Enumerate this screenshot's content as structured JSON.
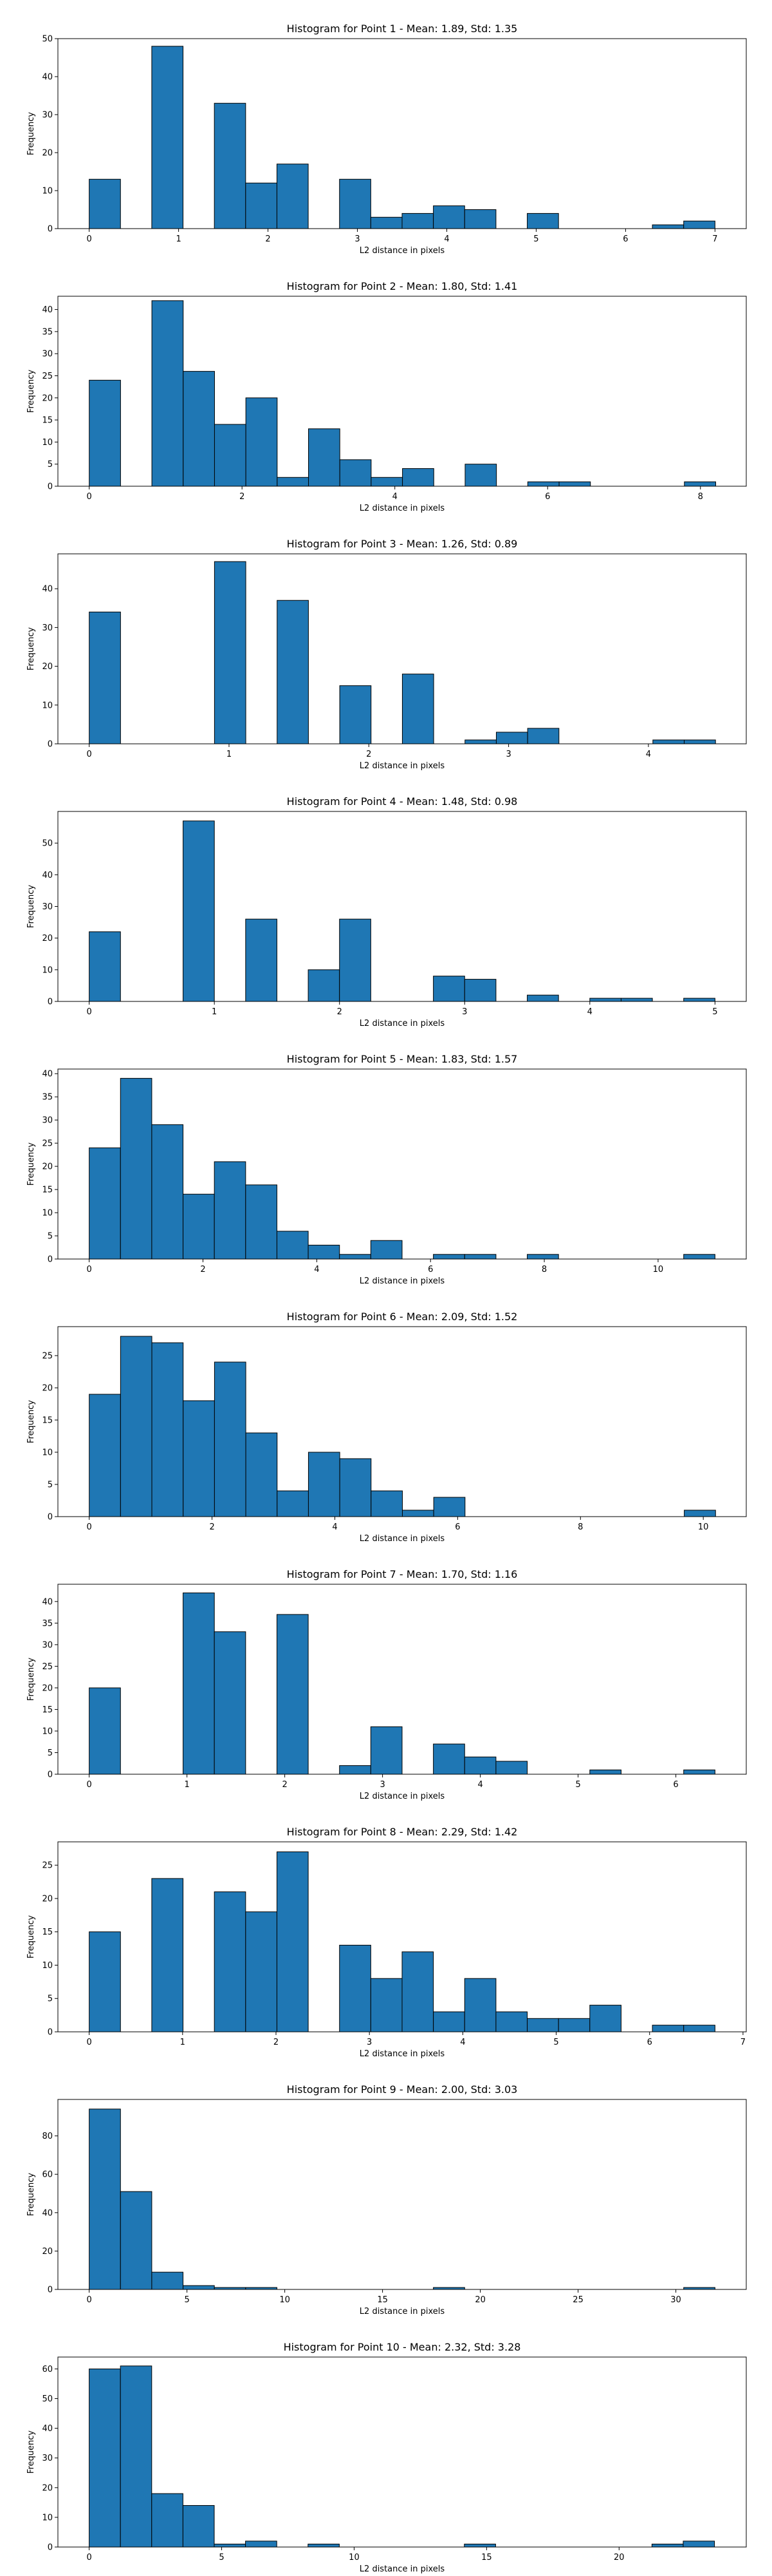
{
  "chart_data": [
    {
      "type": "bar",
      "title": "Histogram for Point 1 - Mean: 1.89, Std: 1.35",
      "xlabel": "L2 distance in pixels",
      "ylabel": "Frequency",
      "bin_width": 0.35,
      "xlim": [
        -0.35,
        7.35
      ],
      "ylim": [
        0,
        50
      ],
      "xticks": [
        0,
        1,
        2,
        3,
        4,
        5,
        6,
        7
      ],
      "yticks": [
        0,
        10,
        20,
        30,
        40,
        50
      ],
      "bins": [
        {
          "x": 0.0,
          "value": 13
        },
        {
          "x": 0.7,
          "value": 48
        },
        {
          "x": 1.4,
          "value": 33
        },
        {
          "x": 1.75,
          "value": 12
        },
        {
          "x": 2.1,
          "value": 17
        },
        {
          "x": 2.8,
          "value": 13
        },
        {
          "x": 3.15,
          "value": 3
        },
        {
          "x": 3.5,
          "value": 4
        },
        {
          "x": 3.85,
          "value": 6
        },
        {
          "x": 4.2,
          "value": 5
        },
        {
          "x": 4.9,
          "value": 4
        },
        {
          "x": 6.3,
          "value": 1
        },
        {
          "x": 6.65,
          "value": 2
        }
      ]
    },
    {
      "type": "bar",
      "title": "Histogram for Point 2 - Mean: 1.80, Std: 1.41",
      "xlabel": "L2 distance in pixels",
      "ylabel": "Frequency",
      "bin_width": 0.41,
      "xlim": [
        -0.41,
        8.6
      ],
      "ylim": [
        0,
        43
      ],
      "xticks": [
        0,
        2,
        4,
        6,
        8
      ],
      "yticks": [
        0,
        5,
        10,
        15,
        20,
        25,
        30,
        35,
        40
      ],
      "bins": [
        {
          "x": 0.0,
          "value": 24
        },
        {
          "x": 0.82,
          "value": 42
        },
        {
          "x": 1.23,
          "value": 26
        },
        {
          "x": 1.64,
          "value": 14
        },
        {
          "x": 2.05,
          "value": 20
        },
        {
          "x": 2.46,
          "value": 2
        },
        {
          "x": 2.87,
          "value": 13
        },
        {
          "x": 3.28,
          "value": 6
        },
        {
          "x": 3.69,
          "value": 2
        },
        {
          "x": 4.1,
          "value": 4
        },
        {
          "x": 4.92,
          "value": 5
        },
        {
          "x": 5.74,
          "value": 1
        },
        {
          "x": 6.15,
          "value": 1
        },
        {
          "x": 7.79,
          "value": 1
        }
      ]
    },
    {
      "type": "bar",
      "title": "Histogram for Point 3 - Mean: 1.26, Std: 0.89",
      "xlabel": "L2 distance in pixels",
      "ylabel": "Frequency",
      "bin_width": 0.224,
      "xlim": [
        -0.224,
        4.7
      ],
      "ylim": [
        0,
        49
      ],
      "xticks": [
        0,
        1,
        2,
        3,
        4
      ],
      "yticks": [
        0,
        10,
        20,
        30,
        40
      ],
      "bins": [
        {
          "x": 0.0,
          "value": 34
        },
        {
          "x": 0.896,
          "value": 47
        },
        {
          "x": 1.344,
          "value": 37
        },
        {
          "x": 1.792,
          "value": 15
        },
        {
          "x": 2.24,
          "value": 18
        },
        {
          "x": 2.688,
          "value": 1
        },
        {
          "x": 2.912,
          "value": 3
        },
        {
          "x": 3.136,
          "value": 4
        },
        {
          "x": 4.032,
          "value": 1
        },
        {
          "x": 4.256,
          "value": 1
        }
      ]
    },
    {
      "type": "bar",
      "title": "Histogram for Point 4 - Mean: 1.48, Std: 0.98",
      "xlabel": "L2 distance in pixels",
      "ylabel": "Frequency",
      "bin_width": 0.25,
      "xlim": [
        -0.25,
        5.25
      ],
      "ylim": [
        0,
        60
      ],
      "xticks": [
        0,
        1,
        2,
        3,
        4,
        5
      ],
      "yticks": [
        0,
        10,
        20,
        30,
        40,
        50
      ],
      "bins": [
        {
          "x": 0.0,
          "value": 22
        },
        {
          "x": 0.75,
          "value": 57
        },
        {
          "x": 1.25,
          "value": 26
        },
        {
          "x": 1.75,
          "value": 10
        },
        {
          "x": 2.0,
          "value": 26
        },
        {
          "x": 2.75,
          "value": 8
        },
        {
          "x": 3.0,
          "value": 7
        },
        {
          "x": 3.5,
          "value": 2
        },
        {
          "x": 4.0,
          "value": 1
        },
        {
          "x": 4.25,
          "value": 1
        },
        {
          "x": 4.75,
          "value": 1
        }
      ]
    },
    {
      "type": "bar",
      "title": "Histogram for Point 5 - Mean: 1.83, Std: 1.57",
      "xlabel": "L2 distance in pixels",
      "ylabel": "Frequency",
      "bin_width": 0.55,
      "xlim": [
        -0.55,
        11.55
      ],
      "ylim": [
        0,
        41
      ],
      "xticks": [
        0,
        2,
        4,
        6,
        8,
        10
      ],
      "yticks": [
        0,
        5,
        10,
        15,
        20,
        25,
        30,
        35,
        40
      ],
      "bins": [
        {
          "x": 0.0,
          "value": 24
        },
        {
          "x": 0.55,
          "value": 39
        },
        {
          "x": 1.1,
          "value": 29
        },
        {
          "x": 1.65,
          "value": 14
        },
        {
          "x": 2.2,
          "value": 21
        },
        {
          "x": 2.75,
          "value": 16
        },
        {
          "x": 3.3,
          "value": 6
        },
        {
          "x": 3.85,
          "value": 3
        },
        {
          "x": 4.4,
          "value": 1
        },
        {
          "x": 4.95,
          "value": 4
        },
        {
          "x": 6.05,
          "value": 1
        },
        {
          "x": 6.6,
          "value": 1
        },
        {
          "x": 7.7,
          "value": 1
        },
        {
          "x": 10.45,
          "value": 1
        }
      ]
    },
    {
      "type": "bar",
      "title": "Histogram for Point 6 - Mean: 2.09, Std: 1.52",
      "xlabel": "L2 distance in pixels",
      "ylabel": "Frequency",
      "bin_width": 0.51,
      "xlim": [
        -0.51,
        10.7
      ],
      "ylim": [
        0,
        29.5
      ],
      "xticks": [
        0,
        2,
        4,
        6,
        8,
        10
      ],
      "yticks": [
        0,
        5,
        10,
        15,
        20,
        25
      ],
      "bins": [
        {
          "x": 0.0,
          "value": 19
        },
        {
          "x": 0.51,
          "value": 28
        },
        {
          "x": 1.02,
          "value": 27
        },
        {
          "x": 1.53,
          "value": 18
        },
        {
          "x": 2.04,
          "value": 24
        },
        {
          "x": 2.55,
          "value": 13
        },
        {
          "x": 3.06,
          "value": 4
        },
        {
          "x": 3.57,
          "value": 10
        },
        {
          "x": 4.08,
          "value": 9
        },
        {
          "x": 4.59,
          "value": 4
        },
        {
          "x": 5.1,
          "value": 1
        },
        {
          "x": 5.61,
          "value": 3
        },
        {
          "x": 9.69,
          "value": 1
        }
      ]
    },
    {
      "type": "bar",
      "title": "Histogram for Point 7 - Mean: 1.70, Std: 1.16",
      "xlabel": "L2 distance in pixels",
      "ylabel": "Frequency",
      "bin_width": 0.32,
      "xlim": [
        -0.32,
        6.72
      ],
      "ylim": [
        0,
        44
      ],
      "xticks": [
        0,
        1,
        2,
        3,
        4,
        5,
        6
      ],
      "yticks": [
        0,
        5,
        10,
        15,
        20,
        25,
        30,
        35,
        40
      ],
      "bins": [
        {
          "x": 0.0,
          "value": 20
        },
        {
          "x": 0.96,
          "value": 42
        },
        {
          "x": 1.28,
          "value": 33
        },
        {
          "x": 1.92,
          "value": 37
        },
        {
          "x": 2.56,
          "value": 2
        },
        {
          "x": 2.88,
          "value": 11
        },
        {
          "x": 3.52,
          "value": 7
        },
        {
          "x": 3.84,
          "value": 4
        },
        {
          "x": 4.16,
          "value": 3
        },
        {
          "x": 5.12,
          "value": 1
        },
        {
          "x": 6.08,
          "value": 1
        }
      ]
    },
    {
      "type": "bar",
      "title": "Histogram for Point 8 - Mean: 2.29, Std: 1.42",
      "xlabel": "L2 distance in pixels",
      "ylabel": "Frequency",
      "bin_width": 0.335,
      "xlim": [
        -0.335,
        7.035
      ],
      "ylim": [
        0,
        28.5
      ],
      "xticks": [
        0,
        1,
        2,
        3,
        4,
        5,
        6,
        7
      ],
      "yticks": [
        0,
        5,
        10,
        15,
        20,
        25
      ],
      "bins": [
        {
          "x": 0.0,
          "value": 15
        },
        {
          "x": 0.67,
          "value": 23
        },
        {
          "x": 1.34,
          "value": 21
        },
        {
          "x": 1.675,
          "value": 18
        },
        {
          "x": 2.01,
          "value": 27
        },
        {
          "x": 2.68,
          "value": 13
        },
        {
          "x": 3.015,
          "value": 8
        },
        {
          "x": 3.35,
          "value": 12
        },
        {
          "x": 3.685,
          "value": 3
        },
        {
          "x": 4.02,
          "value": 8
        },
        {
          "x": 4.355,
          "value": 3
        },
        {
          "x": 4.69,
          "value": 2
        },
        {
          "x": 5.025,
          "value": 2
        },
        {
          "x": 5.36,
          "value": 4
        },
        {
          "x": 6.03,
          "value": 1
        },
        {
          "x": 6.365,
          "value": 1
        }
      ]
    },
    {
      "type": "bar",
      "title": "Histogram for Point 9 - Mean: 2.00, Std: 3.03",
      "xlabel": "L2 distance in pixels",
      "ylabel": "Frequency",
      "bin_width": 1.6,
      "xlim": [
        -1.6,
        33.6
      ],
      "ylim": [
        0,
        99
      ],
      "xticks": [
        0,
        5,
        10,
        15,
        20,
        25,
        30
      ],
      "yticks": [
        0,
        20,
        40,
        60,
        80
      ],
      "bins": [
        {
          "x": 0.0,
          "value": 94
        },
        {
          "x": 1.6,
          "value": 51
        },
        {
          "x": 3.2,
          "value": 9
        },
        {
          "x": 4.8,
          "value": 2
        },
        {
          "x": 6.4,
          "value": 1
        },
        {
          "x": 8.0,
          "value": 1
        },
        {
          "x": 17.6,
          "value": 1
        },
        {
          "x": 30.4,
          "value": 1
        }
      ]
    },
    {
      "type": "bar",
      "title": "Histogram for Point 10 - Mean: 2.32, Std: 3.28",
      "xlabel": "L2 distance in pixels",
      "ylabel": "Frequency",
      "bin_width": 1.18,
      "xlim": [
        -1.18,
        24.8
      ],
      "ylim": [
        0,
        64
      ],
      "xticks": [
        0,
        5,
        10,
        15,
        20
      ],
      "yticks": [
        0,
        10,
        20,
        30,
        40,
        50,
        60
      ],
      "bins": [
        {
          "x": 0.0,
          "value": 60
        },
        {
          "x": 1.18,
          "value": 61
        },
        {
          "x": 2.36,
          "value": 18
        },
        {
          "x": 3.54,
          "value": 14
        },
        {
          "x": 4.72,
          "value": 1
        },
        {
          "x": 5.9,
          "value": 2
        },
        {
          "x": 8.26,
          "value": 1
        },
        {
          "x": 14.16,
          "value": 1
        },
        {
          "x": 21.24,
          "value": 1
        },
        {
          "x": 22.42,
          "value": 2
        }
      ]
    }
  ],
  "style": {
    "bar_color": "#1f77b4",
    "edge_color": "#000000",
    "axis_color": "#000000",
    "text_color": "#000000",
    "background": "#ffffff"
  }
}
